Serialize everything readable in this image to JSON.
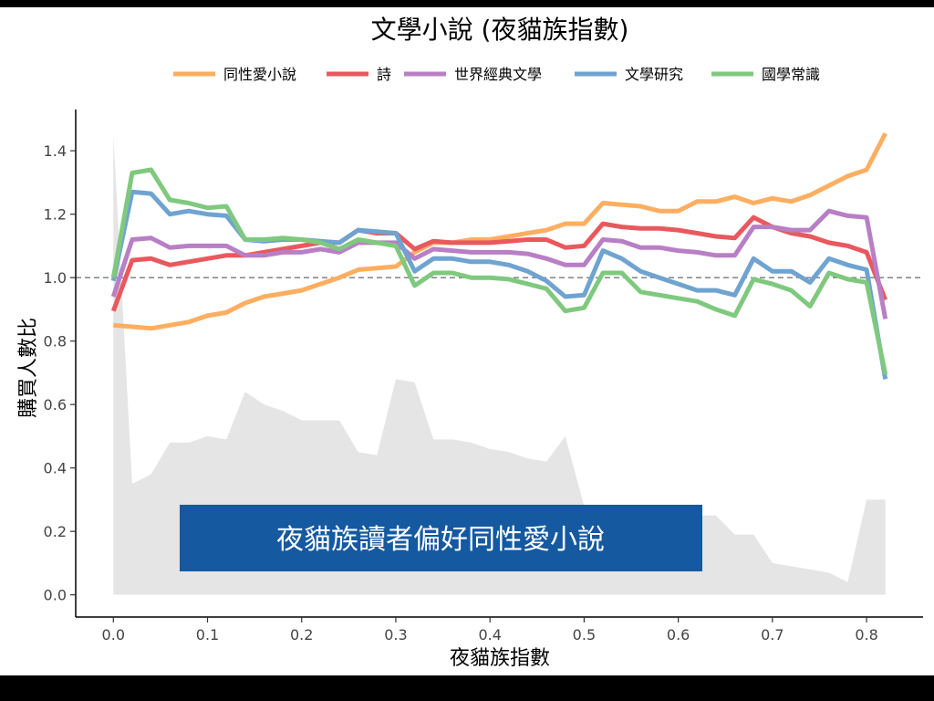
{
  "chart_data": {
    "type": "line",
    "title": "文學小說 (夜貓族指數)",
    "xlabel": "夜貓族指數",
    "ylabel": "購買人數比",
    "xlim": [
      -0.04,
      0.86
    ],
    "ylim": [
      -0.07,
      1.53
    ],
    "x_ticks": [
      "0.0",
      "0.1",
      "0.2",
      "0.3",
      "0.4",
      "0.5",
      "0.6",
      "0.7",
      "0.8"
    ],
    "y_ticks": [
      "0.0",
      "0.2",
      "0.4",
      "0.6",
      "0.8",
      "1.0",
      "1.2",
      "1.4"
    ],
    "reference_line": 1.0,
    "legend_position": "top",
    "annotation": "夜貓族讀者偏好同性愛小說",
    "annotation_color": "#1559a0",
    "x": [
      0.0,
      0.02,
      0.04,
      0.06,
      0.08,
      0.1,
      0.12,
      0.14,
      0.16,
      0.18,
      0.2,
      0.22,
      0.24,
      0.26,
      0.28,
      0.3,
      0.32,
      0.34,
      0.36,
      0.38,
      0.4,
      0.42,
      0.44,
      0.46,
      0.48,
      0.5,
      0.52,
      0.54,
      0.56,
      0.58,
      0.6,
      0.62,
      0.64,
      0.66,
      0.68,
      0.7,
      0.72,
      0.74,
      0.76,
      0.78,
      0.8,
      0.82
    ],
    "background_area": {
      "color": "#e5e5e5",
      "values": [
        1.45,
        0.35,
        0.38,
        0.48,
        0.48,
        0.5,
        0.49,
        0.64,
        0.6,
        0.58,
        0.55,
        0.55,
        0.55,
        0.45,
        0.44,
        0.68,
        0.67,
        0.49,
        0.49,
        0.48,
        0.46,
        0.45,
        0.43,
        0.42,
        0.5,
        0.28,
        0.28,
        0.27,
        0.26,
        0.26,
        0.25,
        0.25,
        0.25,
        0.19,
        0.19,
        0.1,
        0.09,
        0.08,
        0.07,
        0.04,
        0.3,
        0.3
      ]
    },
    "series": [
      {
        "name": "同性愛小說",
        "color": "#fdae61",
        "values": [
          0.85,
          0.845,
          0.84,
          0.85,
          0.86,
          0.88,
          0.89,
          0.92,
          0.94,
          0.95,
          0.96,
          0.98,
          1.0,
          1.025,
          1.03,
          1.035,
          1.08,
          1.11,
          1.11,
          1.12,
          1.12,
          1.13,
          1.14,
          1.15,
          1.17,
          1.17,
          1.235,
          1.23,
          1.225,
          1.21,
          1.21,
          1.24,
          1.24,
          1.255,
          1.235,
          1.25,
          1.24,
          1.26,
          1.29,
          1.32,
          1.34,
          1.455
        ]
      },
      {
        "name": "詩",
        "color": "#e8595e",
        "values": [
          0.895,
          1.055,
          1.06,
          1.04,
          1.05,
          1.06,
          1.07,
          1.07,
          1.08,
          1.09,
          1.1,
          1.11,
          1.11,
          1.15,
          1.14,
          1.14,
          1.09,
          1.115,
          1.11,
          1.11,
          1.11,
          1.115,
          1.12,
          1.12,
          1.095,
          1.1,
          1.17,
          1.16,
          1.155,
          1.155,
          1.15,
          1.14,
          1.13,
          1.125,
          1.19,
          1.16,
          1.14,
          1.13,
          1.11,
          1.1,
          1.08,
          0.93
        ]
      },
      {
        "name": "世界經典文學",
        "color": "#b87fc5",
        "values": [
          0.94,
          1.12,
          1.125,
          1.095,
          1.1,
          1.1,
          1.1,
          1.07,
          1.07,
          1.08,
          1.08,
          1.09,
          1.08,
          1.11,
          1.11,
          1.11,
          1.06,
          1.09,
          1.085,
          1.08,
          1.08,
          1.08,
          1.075,
          1.06,
          1.04,
          1.04,
          1.12,
          1.115,
          1.095,
          1.095,
          1.085,
          1.08,
          1.07,
          1.07,
          1.16,
          1.16,
          1.15,
          1.15,
          1.21,
          1.195,
          1.19,
          0.87
        ]
      },
      {
        "name": "文學研究",
        "color": "#6fa3d0",
        "values": [
          0.99,
          1.27,
          1.265,
          1.2,
          1.21,
          1.2,
          1.195,
          1.12,
          1.115,
          1.12,
          1.12,
          1.115,
          1.11,
          1.15,
          1.145,
          1.14,
          1.02,
          1.06,
          1.06,
          1.05,
          1.05,
          1.04,
          1.02,
          0.99,
          0.94,
          0.945,
          1.085,
          1.06,
          1.02,
          1.0,
          0.98,
          0.96,
          0.96,
          0.945,
          1.06,
          1.02,
          1.02,
          0.985,
          1.06,
          1.04,
          1.025,
          0.68
        ]
      },
      {
        "name": "國學常識",
        "color": "#7fc97f",
        "values": [
          1.0,
          1.33,
          1.34,
          1.245,
          1.235,
          1.22,
          1.225,
          1.12,
          1.12,
          1.125,
          1.12,
          1.11,
          1.09,
          1.12,
          1.11,
          1.1,
          0.975,
          1.015,
          1.015,
          1.0,
          1.0,
          0.995,
          0.98,
          0.965,
          0.895,
          0.905,
          1.015,
          1.015,
          0.955,
          0.945,
          0.935,
          0.925,
          0.9,
          0.88,
          0.995,
          0.98,
          0.96,
          0.91,
          1.015,
          0.995,
          0.985,
          0.695
        ]
      }
    ]
  }
}
